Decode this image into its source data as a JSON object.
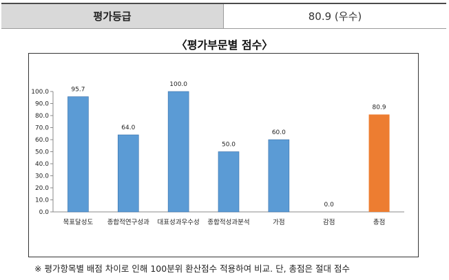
{
  "grade": {
    "label": "평가등급",
    "value": "80.9 (우수)"
  },
  "chart_title": "〈평가부문별 점수〉",
  "footnote": "※ 평가항목별 배점 차이로 인해 100분위 환산점수 적용하여 비교. 단, 총점은 절대 점수",
  "chart_data": {
    "type": "bar",
    "categories": [
      "목표달성도",
      "종합적연구성과",
      "대표성과우수성",
      "종합적성과분석",
      "가점",
      "감점",
      "총점"
    ],
    "values": [
      95.7,
      64.0,
      100.0,
      50.0,
      60.0,
      0.0,
      80.9
    ],
    "data_labels": [
      "95.7",
      "64.0",
      "100.0",
      "50.0",
      "60.0",
      "0.0",
      "80.9"
    ],
    "ylim": [
      0,
      100
    ],
    "yticks": [
      "0.0",
      "10.0",
      "20.0",
      "30.0",
      "40.0",
      "50.0",
      "60.0",
      "70.0",
      "80.0",
      "90.0",
      "100.0"
    ],
    "grid": false,
    "colors": {
      "bar": "#5b9bd5",
      "bar_highlight": "#ed7d31",
      "axis": "#888888"
    },
    "highlight_index": 6
  }
}
